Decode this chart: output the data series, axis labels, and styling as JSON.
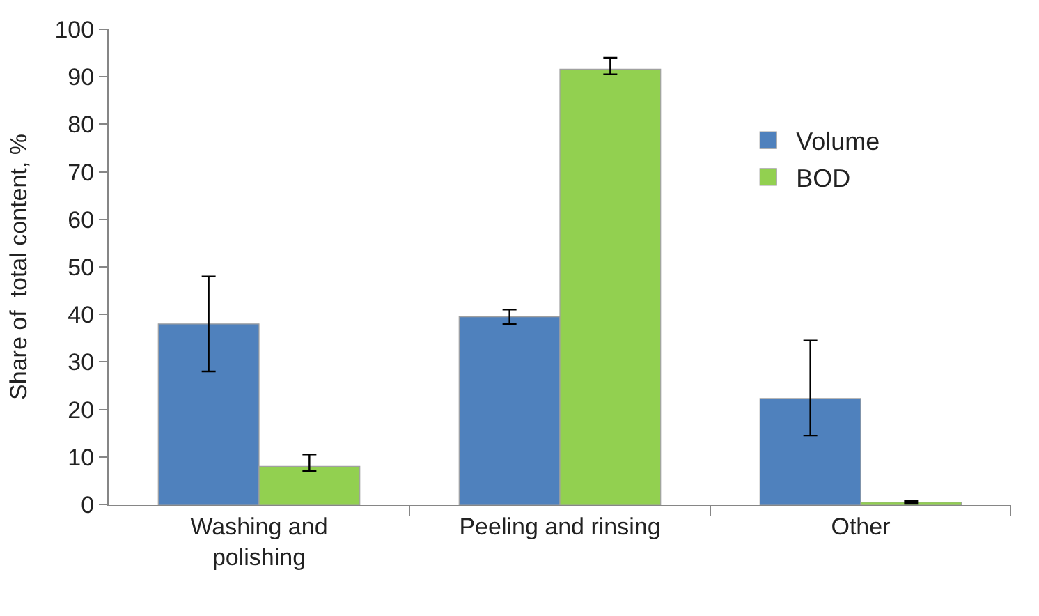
{
  "chart_data": {
    "type": "bar",
    "ylabel": "Share of  total content, %",
    "categories": [
      "Washing and polishing",
      "Peeling and rinsing",
      "Other"
    ],
    "series": [
      {
        "name": "Volume",
        "color": "#4f81bd",
        "values": [
          38,
          39.5,
          22.3
        ],
        "errors": [
          [
            28,
            48
          ],
          [
            38,
            41
          ],
          [
            14.5,
            34.5
          ]
        ]
      },
      {
        "name": "BOD",
        "color": "#92d050",
        "values": [
          8,
          91.6,
          0.5
        ],
        "errors": [
          [
            7,
            10.5
          ],
          [
            90.5,
            94
          ],
          [
            0.3,
            0.7
          ]
        ]
      }
    ],
    "ylim": [
      0,
      100
    ],
    "yticks": [
      0,
      10,
      20,
      30,
      40,
      50,
      60,
      70,
      80,
      90,
      100
    ],
    "legend": "top right"
  }
}
